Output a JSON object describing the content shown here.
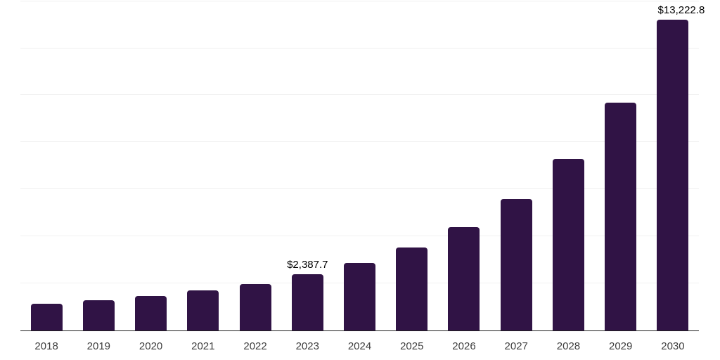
{
  "chart": {
    "background_color": "#ffffff",
    "bar_color": "#301345",
    "axis_line_color": "#1f1f1f",
    "gridline_color": "#f0f0f0",
    "data_label_color": "#000000",
    "tick_label_color": "#3d3d3d"
  },
  "chart_data": {
    "type": "bar",
    "title": "",
    "xlabel": "",
    "ylabel": "",
    "categories": [
      "2018",
      "2019",
      "2020",
      "2021",
      "2022",
      "2023",
      "2024",
      "2025",
      "2026",
      "2027",
      "2028",
      "2029",
      "2030"
    ],
    "values": [
      1145,
      1277,
      1456,
      1695,
      1985,
      2387.7,
      2861,
      3537,
      4404,
      5600,
      7296,
      9697,
      13222.8
    ],
    "value_prefix": "$",
    "annotations": [
      {
        "category": "2023",
        "text": "$2,387.7"
      },
      {
        "category": "2030",
        "text": "$13,222.8"
      }
    ],
    "ylim": [
      0,
      14050
    ],
    "gridlines_every": 2000,
    "grid": true,
    "legend": false,
    "y_axis_labels_visible": false
  }
}
